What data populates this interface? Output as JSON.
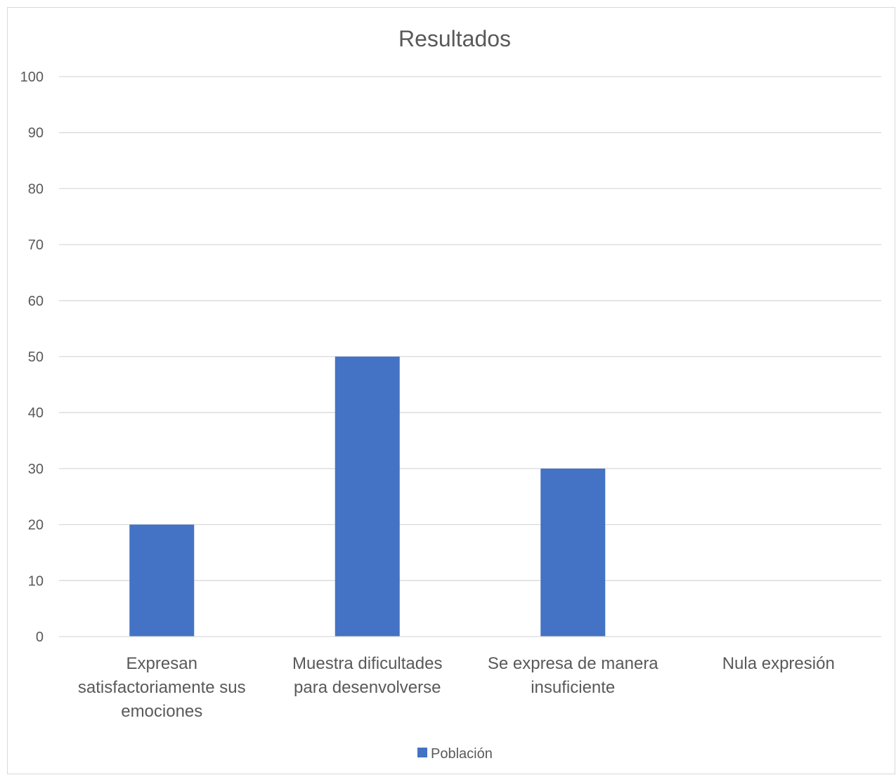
{
  "chart_data": {
    "type": "bar",
    "title": "Resultados",
    "categories": [
      [
        "Expresan",
        "satisfactoriamente sus",
        "emociones"
      ],
      [
        "Muestra dificultades",
        "para desenvolverse"
      ],
      [
        "Se expresa de manera",
        "insuficiente"
      ],
      [
        "Nula expresión"
      ]
    ],
    "series": [
      {
        "name": "Población",
        "values": [
          20,
          50,
          30,
          0
        ],
        "color": "#4472c4"
      }
    ],
    "ylim": [
      0,
      100
    ],
    "yticks": [
      0,
      10,
      20,
      30,
      40,
      50,
      60,
      70,
      80,
      90,
      100
    ],
    "grid": true,
    "legend_position": "bottom"
  }
}
